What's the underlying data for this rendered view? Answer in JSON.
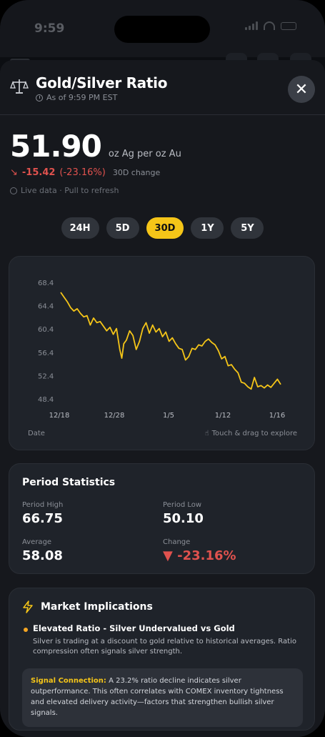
{
  "status": {
    "time": "9:59"
  },
  "header": {
    "title": "Gold/Silver Ratio",
    "subtitle": "As of 9:59 PM EST",
    "close_icon": "close-icon"
  },
  "price": {
    "value": "51.90",
    "unit": "oz Ag per oz Au",
    "change_value": "-15.42",
    "change_pct": "(-23.16%)",
    "change_label": "30D change",
    "live_text": "Live data · Pull to refresh"
  },
  "tabs": [
    {
      "label": "24H",
      "active": false
    },
    {
      "label": "5D",
      "active": false
    },
    {
      "label": "30D",
      "active": true
    },
    {
      "label": "1Y",
      "active": false
    },
    {
      "label": "5Y",
      "active": false
    }
  ],
  "chart": {
    "x_caption": "Date",
    "hint": "Touch & drag to explore"
  },
  "chart_data": {
    "type": "line",
    "series": [
      {
        "values": [
          [
            0.0,
            66.8
          ],
          [
            0.5,
            66.0
          ],
          [
            1.0,
            65.2
          ],
          [
            1.5,
            64.2
          ],
          [
            2.0,
            63.6
          ],
          [
            2.5,
            64.0
          ],
          [
            3.0,
            63.2
          ],
          [
            3.5,
            62.6
          ],
          [
            4.0,
            62.8
          ],
          [
            4.5,
            61.2
          ],
          [
            5.0,
            62.4
          ],
          [
            5.5,
            61.6
          ],
          [
            6.0,
            61.8
          ],
          [
            6.5,
            61.0
          ],
          [
            7.0,
            60.2
          ],
          [
            7.5,
            60.8
          ],
          [
            8.0,
            59.6
          ],
          [
            8.5,
            60.6
          ],
          [
            9.0,
            57.0
          ],
          [
            9.3,
            55.5
          ],
          [
            9.6,
            58.0
          ],
          [
            10.0,
            58.6
          ],
          [
            10.5,
            60.2
          ],
          [
            11.0,
            59.4
          ],
          [
            11.5,
            57.0
          ],
          [
            12.0,
            58.4
          ],
          [
            12.5,
            60.6
          ],
          [
            13.0,
            61.6
          ],
          [
            13.5,
            59.8
          ],
          [
            14.0,
            61.2
          ],
          [
            14.5,
            60.0
          ],
          [
            15.0,
            60.6
          ],
          [
            15.5,
            59.2
          ],
          [
            16.0,
            60.0
          ],
          [
            16.5,
            58.4
          ],
          [
            17.0,
            59.0
          ],
          [
            17.5,
            58.0
          ],
          [
            18.0,
            57.2
          ],
          [
            18.5,
            57.0
          ],
          [
            19.0,
            55.2
          ],
          [
            19.5,
            55.8
          ],
          [
            20.0,
            57.2
          ],
          [
            20.5,
            57.0
          ],
          [
            21.0,
            57.8
          ],
          [
            21.5,
            57.6
          ],
          [
            22.0,
            58.4
          ],
          [
            22.5,
            58.8
          ],
          [
            23.0,
            58.2
          ],
          [
            23.5,
            57.8
          ],
          [
            24.0,
            56.8
          ],
          [
            24.5,
            55.4
          ],
          [
            25.0,
            55.8
          ],
          [
            25.5,
            54.2
          ],
          [
            26.0,
            54.4
          ],
          [
            26.5,
            53.6
          ],
          [
            27.0,
            53.0
          ],
          [
            27.5,
            51.4
          ],
          [
            28.0,
            51.2
          ],
          [
            28.5,
            50.6
          ],
          [
            29.0,
            50.2
          ],
          [
            29.5,
            52.2
          ],
          [
            30.0,
            50.6
          ],
          [
            30.5,
            50.8
          ],
          [
            31.0,
            50.4
          ],
          [
            31.5,
            50.9
          ],
          [
            32.0,
            50.5
          ],
          [
            32.5,
            51.2
          ],
          [
            33.0,
            51.9
          ],
          [
            33.5,
            51.0
          ]
        ]
      }
    ],
    "y_ticks": [
      "68.4",
      "64.4",
      "60.4",
      "56.4",
      "52.4",
      "48.4"
    ],
    "x_ticks": [
      "12/18",
      "12/28",
      "1/5",
      "1/12",
      "1/16"
    ],
    "ylim": [
      48.4,
      68.4
    ],
    "xlabel": "Date",
    "line_color": "#f5c518"
  },
  "stats": {
    "title": "Period Statistics",
    "high_label": "Period High",
    "high_value": "66.75",
    "low_label": "Period Low",
    "low_value": "50.10",
    "avg_label": "Average",
    "avg_value": "58.08",
    "change_label": "Change",
    "change_value": "▼ -23.16%"
  },
  "implications": {
    "title": "Market Implications",
    "bullet_title": "Elevated Ratio - Silver Undervalued vs Gold",
    "bullet_desc": "Silver is trading at a discount to gold relative to historical averages. Ratio compression often signals silver strength.",
    "signal_label": "Signal Connection:",
    "signal_text": " A 23.2% ratio decline indicates silver outperformance. This often correlates with COMEX inventory tightness and elevated delivery activity—factors that strengthen bullish silver signals."
  },
  "colors": {
    "accent": "#f5c518",
    "negative": "#e0524e",
    "background": "#16181d",
    "card": "#1f232a"
  }
}
